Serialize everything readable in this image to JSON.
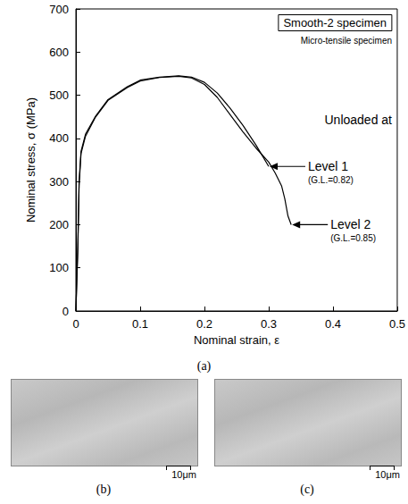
{
  "chart_data": {
    "type": "line",
    "title": "Smooth-2 specimen",
    "subtitle": "Micro-tensile specimen",
    "x_label": "Nominal strain, ε",
    "y_label": "Nominal stress, σ (MPa)",
    "caption": "(a)",
    "xlim": [
      0,
      0.5
    ],
    "xticks": [
      0,
      0.1,
      0.2,
      0.3,
      0.4,
      0.5
    ],
    "ylim": [
      0,
      700
    ],
    "yticks": [
      0,
      100,
      200,
      300,
      400,
      500,
      600,
      700
    ],
    "grid": false,
    "series": [
      {
        "color": "#000000",
        "x": [
          0,
          0.003,
          0.005,
          0.008,
          0.015,
          0.03,
          0.05,
          0.08,
          0.1,
          0.13,
          0.16,
          0.18,
          0.2,
          0.22,
          0.24,
          0.26,
          0.28,
          0.29,
          0.3
        ],
        "values": [
          0,
          150,
          300,
          370,
          410,
          450,
          490,
          520,
          535,
          542,
          545,
          542,
          530,
          505,
          470,
          430,
          385,
          360,
          335
        ]
      },
      {
        "color": "#000000",
        "x": [
          0,
          0.003,
          0.005,
          0.008,
          0.015,
          0.03,
          0.05,
          0.08,
          0.1,
          0.13,
          0.16,
          0.18,
          0.2,
          0.22,
          0.24,
          0.26,
          0.28,
          0.3,
          0.31,
          0.32,
          0.325,
          0.33,
          0.335
        ],
        "values": [
          0,
          140,
          290,
          365,
          405,
          448,
          488,
          518,
          533,
          541,
          544,
          540,
          525,
          495,
          455,
          415,
          378,
          345,
          320,
          290,
          260,
          220,
          200
        ]
      }
    ],
    "annotations": [
      {
        "text": "Unloaded at"
      },
      {
        "text": "Level 1",
        "note": "(G.L.=0.82)",
        "arrow_to": [
          0.3,
          335
        ]
      },
      {
        "text": "Level 2",
        "note": "(G.L.=0.85)",
        "arrow_to": [
          0.335,
          200
        ]
      }
    ]
  },
  "images": [
    {
      "label": "(b)",
      "scale_bar": "10μm"
    },
    {
      "label": "(c)",
      "scale_bar": "10μm"
    }
  ]
}
